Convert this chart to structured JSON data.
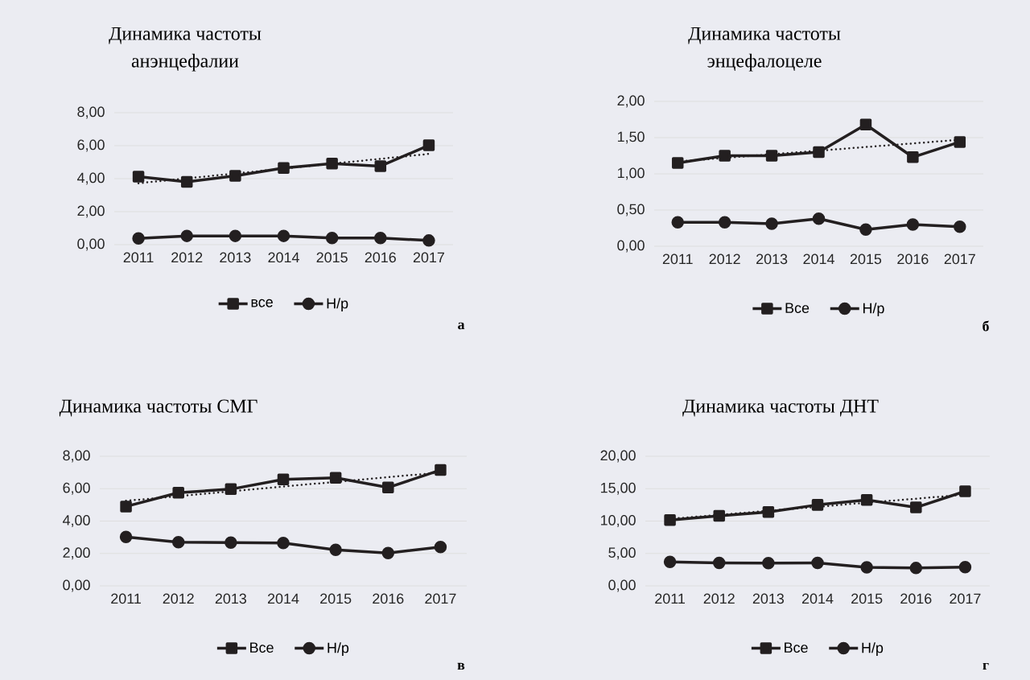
{
  "chart_data": [
    {
      "type": "line",
      "title": "Динамика частоты\nанэнцефалии",
      "categories": [
        "2011",
        "2012",
        "2013",
        "2014",
        "2015",
        "2016",
        "2017"
      ],
      "series": [
        {
          "name": "все",
          "color": "#231f20",
          "marker": "square",
          "values": [
            4.12,
            3.8,
            4.17,
            4.65,
            4.92,
            4.76,
            6.02
          ]
        },
        {
          "name": "Н/р",
          "color": "#231f20",
          "marker": "circle",
          "values": [
            0.38,
            0.53,
            0.53,
            0.53,
            0.4,
            0.4,
            0.25
          ]
        },
        {
          "type": "line",
          "color": "#231f20",
          "marker": "none",
          "line_style": "dotted",
          "values": [
            3.72,
            4.02,
            4.31,
            4.61,
            4.91,
            5.2,
            5.5
          ]
        }
      ],
      "ylim": [
        0,
        8
      ],
      "yticks": [
        {
          "value": 0,
          "label": "0,00"
        },
        {
          "value": 2,
          "label": "2,00"
        },
        {
          "value": 4,
          "label": "4,00"
        },
        {
          "value": 6,
          "label": "6,00"
        },
        {
          "value": 8,
          "label": "8,00"
        }
      ],
      "grid": "y",
      "legend": "bottom",
      "annotations": [
        "а"
      ]
    },
    {
      "type": "line",
      "title": "Динамика частоты\nэнцефалоцеле",
      "categories": [
        "2011",
        "2012",
        "2013",
        "2014",
        "2015",
        "2016",
        "2017"
      ],
      "series": [
        {
          "name": "Все",
          "color": "#231f20",
          "marker": "square",
          "values": [
            1.15,
            1.25,
            1.25,
            1.3,
            1.68,
            1.23,
            1.44
          ]
        },
        {
          "name": "Н/р",
          "color": "#231f20",
          "marker": "circle",
          "values": [
            0.33,
            0.33,
            0.31,
            0.38,
            0.23,
            0.3,
            0.27
          ]
        },
        {
          "type": "line",
          "color": "#231f20",
          "marker": "none",
          "line_style": "dotted",
          "values": [
            1.17,
            1.22,
            1.27,
            1.32,
            1.37,
            1.42,
            1.47
          ]
        }
      ],
      "ylim": [
        0,
        2
      ],
      "yticks": [
        {
          "value": 0,
          "label": "0,00"
        },
        {
          "value": 0.5,
          "label": "0,50"
        },
        {
          "value": 1,
          "label": "1,00"
        },
        {
          "value": 1.5,
          "label": "1,50"
        },
        {
          "value": 2,
          "label": "2,00"
        }
      ],
      "grid": "y",
      "legend": "bottom",
      "annotations": [
        "б"
      ]
    },
    {
      "type": "line",
      "title": "Динамика частоты СМГ",
      "categories": [
        "2011",
        "2012",
        "2013",
        "2014",
        "2015",
        "2016",
        "2017"
      ],
      "series": [
        {
          "name": "Все",
          "color": "#231f20",
          "marker": "square",
          "values": [
            4.9,
            5.75,
            5.97,
            6.57,
            6.67,
            6.07,
            7.15
          ]
        },
        {
          "name": "Н/р",
          "color": "#231f20",
          "marker": "circle",
          "values": [
            3.02,
            2.7,
            2.67,
            2.65,
            2.22,
            2.03,
            2.4
          ]
        },
        {
          "type": "line",
          "color": "#231f20",
          "marker": "none",
          "line_style": "dotted",
          "values": [
            5.25,
            5.54,
            5.83,
            6.13,
            6.42,
            6.71,
            7.0
          ]
        }
      ],
      "ylim": [
        0,
        8
      ],
      "yticks": [
        {
          "value": 0,
          "label": "0,00"
        },
        {
          "value": 2,
          "label": "2,00"
        },
        {
          "value": 4,
          "label": "4,00"
        },
        {
          "value": 6,
          "label": "6,00"
        },
        {
          "value": 8,
          "label": "8,00"
        }
      ],
      "grid": "y",
      "legend": "bottom",
      "annotations": [
        "в"
      ]
    },
    {
      "type": "line",
      "title": "Динамика частоты ДНТ",
      "categories": [
        "2011",
        "2012",
        "2013",
        "2014",
        "2015",
        "2016",
        "2017"
      ],
      "series": [
        {
          "name": "Все",
          "color": "#231f20",
          "marker": "square",
          "values": [
            10.15,
            10.8,
            11.4,
            12.5,
            13.25,
            12.1,
            14.6
          ]
        },
        {
          "name": "Н/р",
          "color": "#231f20",
          "marker": "circle",
          "values": [
            3.7,
            3.55,
            3.5,
            3.55,
            2.85,
            2.75,
            2.9
          ]
        },
        {
          "type": "line",
          "color": "#231f20",
          "marker": "none",
          "line_style": "dotted",
          "values": [
            10.35,
            10.95,
            11.6,
            12.2,
            12.85,
            13.45,
            14.1
          ]
        }
      ],
      "ylim": [
        0,
        20
      ],
      "yticks": [
        {
          "value": 0,
          "label": "0,00"
        },
        {
          "value": 5,
          "label": "5,00"
        },
        {
          "value": 10,
          "label": "10,00"
        },
        {
          "value": 15,
          "label": "15,00"
        },
        {
          "value": 20,
          "label": "20,00"
        }
      ],
      "grid": "y",
      "legend": "bottom",
      "annotations": [
        "г"
      ]
    }
  ]
}
